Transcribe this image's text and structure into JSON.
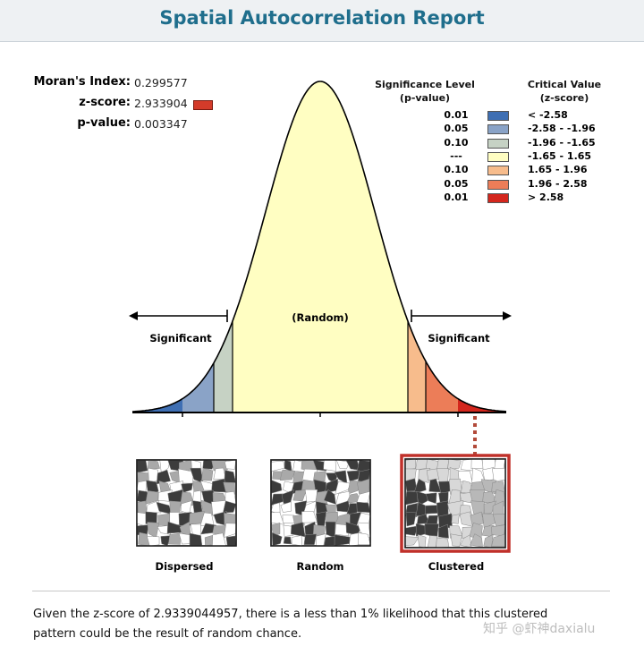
{
  "report": {
    "title": "Spatial Autocorrelation Report"
  },
  "stats": {
    "morans_label": "Moran's Index:",
    "morans_value": "0.299577",
    "zscore_label": "z-score:",
    "zscore_value": "2.933904",
    "pvalue_label": "p-value:",
    "pvalue_value": "0.003347",
    "zscore_marker_color": "#d43b2a"
  },
  "legend": {
    "significance_header_line1": "Significance Level",
    "significance_header_line2": "(p-value)",
    "critical_header_line1": "Critical Value",
    "critical_header_line2": "(z-score)",
    "rows": [
      {
        "p": "0.01",
        "z": "< -2.58",
        "color": "#3f6fb3"
      },
      {
        "p": "0.05",
        "z": "-2.58 - -1.96",
        "color": "#8aa3c7"
      },
      {
        "p": "0.10",
        "z": "-1.96 - -1.65",
        "color": "#c6d2c4"
      },
      {
        "p": "---",
        "z": "-1.65 - 1.65",
        "color": "#fffec2"
      },
      {
        "p": "0.10",
        "z": "1.65 - 1.96",
        "color": "#f7bc8c"
      },
      {
        "p": "0.05",
        "z": "1.96 - 2.58",
        "color": "#ec7d58"
      },
      {
        "p": "0.01",
        "z": "> 2.58",
        "color": "#d4261d"
      }
    ]
  },
  "curve": {
    "random_label": "(Random)",
    "left_significant": "Significant",
    "right_significant": "Significant"
  },
  "maps": {
    "dispersed": "Dispersed",
    "random": "Random",
    "clustered": "Clustered",
    "highlight_color": "#c0302a"
  },
  "conclusion": {
    "line1": "Given the z-score of 2.9339044957, there is a less than 1% likelihood that this clustered",
    "line2": "pattern could be the result of random chance."
  },
  "watermark": "知乎 @虾神daxialu"
}
